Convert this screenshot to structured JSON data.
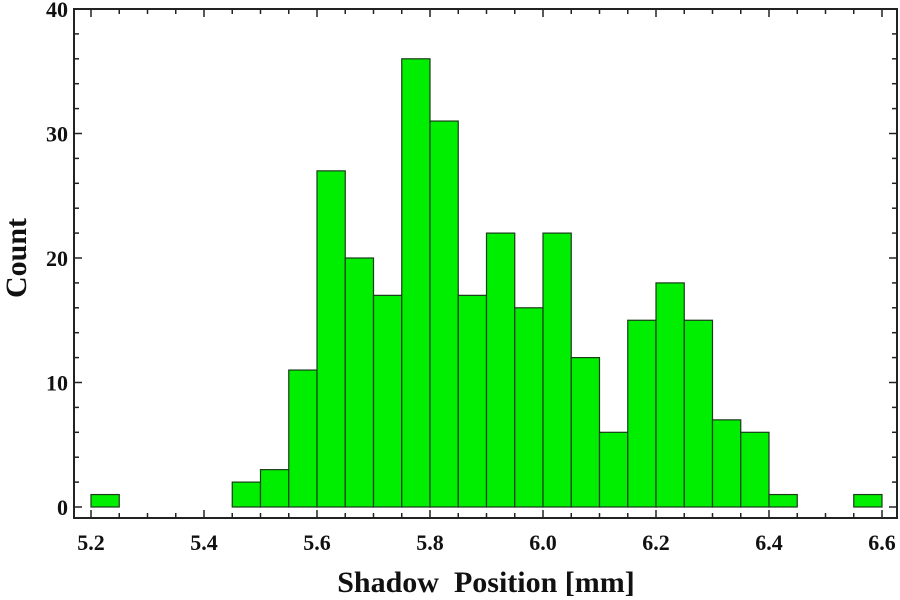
{
  "chart_data": {
    "type": "bar",
    "subtype": "histogram",
    "title": "",
    "xlabel": "Shadow  Position [mm]",
    "ylabel": "Count",
    "xlim": [
      5.17,
      6.63
    ],
    "ylim": [
      -0.6,
      40
    ],
    "bin_width": 0.05,
    "bar_color": "#00ee00",
    "bar_edge_color": "#1a3a1a",
    "x_ticks": [
      "5.2",
      "5.4",
      "5.6",
      "5.8",
      "6.0",
      "6.2",
      "6.4",
      "6.6"
    ],
    "y_ticks": [
      "0",
      "10",
      "20",
      "30",
      "40"
    ],
    "grid": false,
    "legend": null,
    "bins": [
      {
        "start": 5.2,
        "end": 5.25,
        "count": 1
      },
      {
        "start": 5.45,
        "end": 5.5,
        "count": 2
      },
      {
        "start": 5.5,
        "end": 5.55,
        "count": 3
      },
      {
        "start": 5.55,
        "end": 5.6,
        "count": 11
      },
      {
        "start": 5.6,
        "end": 5.65,
        "count": 27
      },
      {
        "start": 5.65,
        "end": 5.7,
        "count": 20
      },
      {
        "start": 5.7,
        "end": 5.75,
        "count": 17
      },
      {
        "start": 5.75,
        "end": 5.8,
        "count": 36
      },
      {
        "start": 5.8,
        "end": 5.85,
        "count": 31
      },
      {
        "start": 5.85,
        "end": 5.9,
        "count": 17
      },
      {
        "start": 5.9,
        "end": 5.95,
        "count": 22
      },
      {
        "start": 5.95,
        "end": 6.0,
        "count": 16
      },
      {
        "start": 6.0,
        "end": 6.05,
        "count": 22
      },
      {
        "start": 6.05,
        "end": 6.1,
        "count": 12
      },
      {
        "start": 6.1,
        "end": 6.15,
        "count": 6
      },
      {
        "start": 6.15,
        "end": 6.2,
        "count": 15
      },
      {
        "start": 6.2,
        "end": 6.25,
        "count": 18
      },
      {
        "start": 6.25,
        "end": 6.3,
        "count": 15
      },
      {
        "start": 6.3,
        "end": 6.35,
        "count": 7
      },
      {
        "start": 6.35,
        "end": 6.4,
        "count": 6
      },
      {
        "start": 6.4,
        "end": 6.45,
        "count": 1
      },
      {
        "start": 6.55,
        "end": 6.6,
        "count": 1
      }
    ]
  }
}
